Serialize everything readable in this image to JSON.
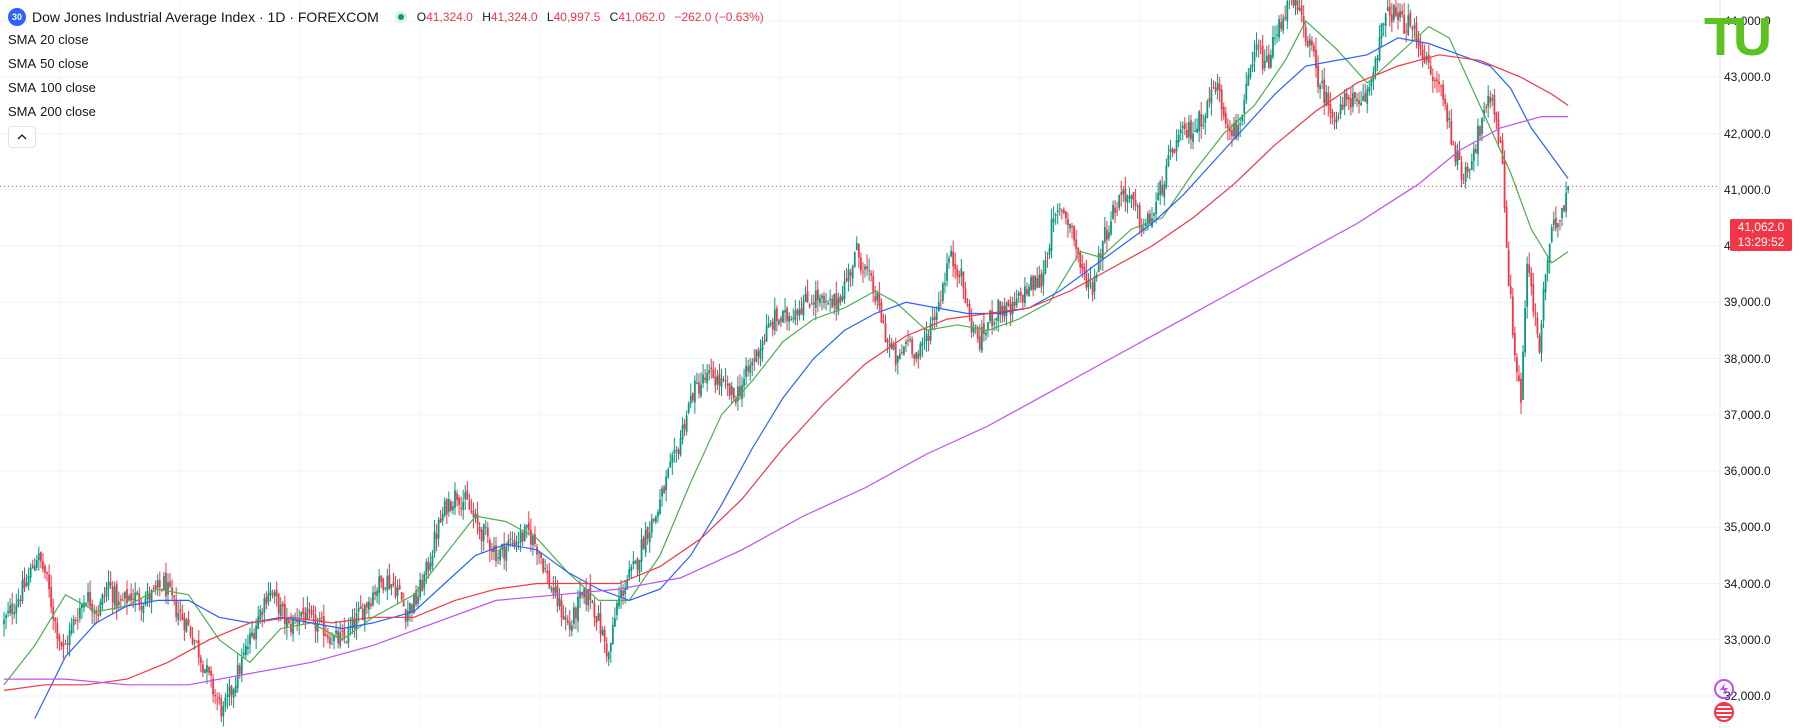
{
  "header": {
    "symbol_badge": "30",
    "title": "Dow Jones Industrial Average Index · 1D · FOREXCOM",
    "ohlc": [
      {
        "key": "O",
        "value": "41,324.0"
      },
      {
        "key": "H",
        "value": "41,324.0"
      },
      {
        "key": "L",
        "value": "40,997.5"
      },
      {
        "key": "C",
        "value": "41,062.0"
      },
      {
        "key": "",
        "value": "−262.0 (−0.63%)"
      }
    ]
  },
  "indicators": [
    {
      "title": "SMA",
      "args": "20 close",
      "color": "#4caf50"
    },
    {
      "title": "SMA",
      "args": "50 close",
      "color": "#2962ff"
    },
    {
      "title": "SMA",
      "args": "100 close",
      "color": "#f23645"
    },
    {
      "title": "SMA",
      "args": "200 close",
      "color": "#bf4ef5"
    }
  ],
  "price_axis": {
    "labels": [
      "44,000.0",
      "43,000.0",
      "42,000.0",
      "41,000.0",
      "40,000.0",
      "39,000.0",
      "38,000.0",
      "37,000.0",
      "36,000.0",
      "35,000.0",
      "34,000.0",
      "33,000.0",
      "32,000.0"
    ],
    "values": [
      44000,
      43000,
      42000,
      41000,
      40000,
      39000,
      38000,
      37000,
      36000,
      35000,
      34000,
      33000,
      32000
    ]
  },
  "last_price": {
    "label": "41,062.0",
    "countdown": "13:29:52",
    "value": 41062
  },
  "logo_text": "TU",
  "colors": {
    "up": "#089981",
    "down": "#f23645",
    "grid": "#f0f3fa",
    "accent": "#2962ff"
  },
  "chart_data": {
    "type": "candlestick",
    "instrument": "Dow Jones Industrial Average Index",
    "timeframe": "1D",
    "source": "FOREXCOM",
    "ylim": [
      31600,
      44900
    ],
    "close_path": [
      [
        0,
        33300
      ],
      [
        12,
        33700
      ],
      [
        22,
        34000
      ],
      [
        32,
        34500
      ],
      [
        40,
        34200
      ],
      [
        50,
        33300
      ],
      [
        58,
        32800
      ],
      [
        70,
        33400
      ],
      [
        80,
        33800
      ],
      [
        92,
        33500
      ],
      [
        102,
        34000
      ],
      [
        112,
        33600
      ],
      [
        124,
        33800
      ],
      [
        134,
        33700
      ],
      [
        146,
        33800
      ],
      [
        156,
        34000
      ],
      [
        166,
        33600
      ],
      [
        178,
        33300
      ],
      [
        186,
        33000
      ],
      [
        196,
        32500
      ],
      [
        206,
        32000
      ],
      [
        214,
        31700
      ],
      [
        224,
        32200
      ],
      [
        236,
        32800
      ],
      [
        248,
        33400
      ],
      [
        258,
        33900
      ],
      [
        268,
        33600
      ],
      [
        278,
        33200
      ],
      [
        290,
        33500
      ],
      [
        300,
        33300
      ],
      [
        312,
        33200
      ],
      [
        322,
        33000
      ],
      [
        332,
        33000
      ],
      [
        342,
        33300
      ],
      [
        352,
        33600
      ],
      [
        362,
        33900
      ],
      [
        372,
        34100
      ],
      [
        384,
        33900
      ],
      [
        392,
        33500
      ],
      [
        402,
        33700
      ],
      [
        412,
        34200
      ],
      [
        422,
        34900
      ],
      [
        432,
        35400
      ],
      [
        442,
        35600
      ],
      [
        452,
        35400
      ],
      [
        462,
        35000
      ],
      [
        472,
        34800
      ],
      [
        482,
        34500
      ],
      [
        492,
        34700
      ],
      [
        502,
        34800
      ],
      [
        512,
        34900
      ],
      [
        522,
        34600
      ],
      [
        532,
        34000
      ],
      [
        542,
        33600
      ],
      [
        552,
        33200
      ],
      [
        562,
        33700
      ],
      [
        572,
        33800
      ],
      [
        582,
        33200
      ],
      [
        590,
        32700
      ],
      [
        598,
        33600
      ],
      [
        606,
        34000
      ],
      [
        616,
        34300
      ],
      [
        626,
        34900
      ],
      [
        636,
        35200
      ],
      [
        646,
        35800
      ],
      [
        656,
        36300
      ],
      [
        664,
        36900
      ],
      [
        672,
        37400
      ],
      [
        682,
        37600
      ],
      [
        692,
        37700
      ],
      [
        702,
        37500
      ],
      [
        712,
        37300
      ],
      [
        722,
        37600
      ],
      [
        732,
        38000
      ],
      [
        742,
        38400
      ],
      [
        752,
        38700
      ],
      [
        762,
        38700
      ],
      [
        772,
        38900
      ],
      [
        782,
        39000
      ],
      [
        792,
        39100
      ],
      [
        802,
        38900
      ],
      [
        812,
        39000
      ],
      [
        822,
        39400
      ],
      [
        832,
        39900
      ],
      [
        842,
        39500
      ],
      [
        852,
        39000
      ],
      [
        862,
        38300
      ],
      [
        872,
        37900
      ],
      [
        882,
        38400
      ],
      [
        892,
        38000
      ],
      [
        902,
        38500
      ],
      [
        912,
        39000
      ],
      [
        922,
        39800
      ],
      [
        932,
        39600
      ],
      [
        942,
        38700
      ],
      [
        952,
        38300
      ],
      [
        962,
        38700
      ],
      [
        972,
        38900
      ],
      [
        982,
        38800
      ],
      [
        992,
        39100
      ],
      [
        1002,
        39300
      ],
      [
        1012,
        39400
      ],
      [
        1022,
        40300
      ],
      [
        1032,
        40700
      ],
      [
        1042,
        40300
      ],
      [
        1052,
        39500
      ],
      [
        1062,
        39300
      ],
      [
        1072,
        40100
      ],
      [
        1082,
        40600
      ],
      [
        1092,
        41000
      ],
      [
        1102,
        40700
      ],
      [
        1112,
        40300
      ],
      [
        1122,
        40600
      ],
      [
        1132,
        41200
      ],
      [
        1142,
        41800
      ],
      [
        1152,
        42000
      ],
      [
        1162,
        42100
      ],
      [
        1172,
        42400
      ],
      [
        1182,
        42900
      ],
      [
        1192,
        42300
      ],
      [
        1202,
        42000
      ],
      [
        1212,
        42700
      ],
      [
        1222,
        43500
      ],
      [
        1232,
        43200
      ],
      [
        1242,
        43800
      ],
      [
        1252,
        44300
      ],
      [
        1262,
        44200
      ],
      [
        1272,
        43700
      ],
      [
        1282,
        43000
      ],
      [
        1292,
        42500
      ],
      [
        1302,
        42300
      ],
      [
        1312,
        42700
      ],
      [
        1322,
        42400
      ],
      [
        1332,
        42800
      ],
      [
        1342,
        43700
      ],
      [
        1352,
        44200
      ],
      [
        1362,
        44000
      ],
      [
        1372,
        43900
      ],
      [
        1382,
        43600
      ],
      [
        1392,
        43000
      ],
      [
        1402,
        42800
      ],
      [
        1412,
        42000
      ],
      [
        1422,
        41200
      ],
      [
        1432,
        41600
      ],
      [
        1442,
        42200
      ],
      [
        1452,
        42700
      ],
      [
        1462,
        41500
      ],
      [
        1468,
        39400
      ],
      [
        1474,
        38100
      ],
      [
        1480,
        37300
      ],
      [
        1486,
        39700
      ],
      [
        1492,
        38900
      ],
      [
        1498,
        38200
      ],
      [
        1504,
        39500
      ],
      [
        1510,
        40200
      ],
      [
        1516,
        40500
      ],
      [
        1522,
        40800
      ],
      [
        1526,
        41062
      ]
    ],
    "sma_series": [
      {
        "name": "SMA 20",
        "color": "#4caf50",
        "points": [
          [
            0,
            32200
          ],
          [
            30,
            32900
          ],
          [
            60,
            33800
          ],
          [
            90,
            33500
          ],
          [
            120,
            33600
          ],
          [
            150,
            33900
          ],
          [
            180,
            33800
          ],
          [
            210,
            33000
          ],
          [
            240,
            32600
          ],
          [
            270,
            33200
          ],
          [
            300,
            33300
          ],
          [
            330,
            33000
          ],
          [
            360,
            33400
          ],
          [
            400,
            33800
          ],
          [
            430,
            34500
          ],
          [
            460,
            35200
          ],
          [
            490,
            35100
          ],
          [
            520,
            34800
          ],
          [
            550,
            34200
          ],
          [
            580,
            33700
          ],
          [
            610,
            33700
          ],
          [
            640,
            34500
          ],
          [
            670,
            35800
          ],
          [
            700,
            37000
          ],
          [
            730,
            37600
          ],
          [
            760,
            38300
          ],
          [
            790,
            38700
          ],
          [
            820,
            38900
          ],
          [
            850,
            39200
          ],
          [
            870,
            39000
          ],
          [
            900,
            38500
          ],
          [
            930,
            38600
          ],
          [
            960,
            38500
          ],
          [
            990,
            38700
          ],
          [
            1020,
            39000
          ],
          [
            1050,
            39900
          ],
          [
            1070,
            39800
          ],
          [
            1100,
            40300
          ],
          [
            1130,
            40500
          ],
          [
            1160,
            41300
          ],
          [
            1190,
            42000
          ],
          [
            1220,
            42500
          ],
          [
            1250,
            43300
          ],
          [
            1270,
            44000
          ],
          [
            1300,
            43500
          ],
          [
            1330,
            42900
          ],
          [
            1360,
            43400
          ],
          [
            1390,
            43900
          ],
          [
            1410,
            43700
          ],
          [
            1430,
            42900
          ],
          [
            1450,
            42100
          ],
          [
            1470,
            41300
          ],
          [
            1490,
            40300
          ],
          [
            1510,
            39700
          ],
          [
            1526,
            39900
          ]
        ]
      },
      {
        "name": "SMA 50",
        "color": "#2962ff",
        "points": [
          [
            30,
            31600
          ],
          [
            60,
            32700
          ],
          [
            90,
            33300
          ],
          [
            120,
            33600
          ],
          [
            150,
            33700
          ],
          [
            180,
            33700
          ],
          [
            210,
            33400
          ],
          [
            240,
            33300
          ],
          [
            270,
            33400
          ],
          [
            300,
            33300
          ],
          [
            330,
            33200
          ],
          [
            360,
            33300
          ],
          [
            400,
            33500
          ],
          [
            430,
            34000
          ],
          [
            460,
            34500
          ],
          [
            490,
            34700
          ],
          [
            520,
            34600
          ],
          [
            550,
            34200
          ],
          [
            580,
            33900
          ],
          [
            610,
            33700
          ],
          [
            640,
            33900
          ],
          [
            670,
            34500
          ],
          [
            700,
            35400
          ],
          [
            730,
            36400
          ],
          [
            760,
            37300
          ],
          [
            790,
            38000
          ],
          [
            820,
            38500
          ],
          [
            850,
            38800
          ],
          [
            880,
            39000
          ],
          [
            910,
            38900
          ],
          [
            940,
            38800
          ],
          [
            970,
            38800
          ],
          [
            1000,
            38900
          ],
          [
            1030,
            39200
          ],
          [
            1060,
            39600
          ],
          [
            1090,
            40000
          ],
          [
            1120,
            40400
          ],
          [
            1150,
            40900
          ],
          [
            1180,
            41500
          ],
          [
            1210,
            42100
          ],
          [
            1240,
            42700
          ],
          [
            1270,
            43200
          ],
          [
            1300,
            43300
          ],
          [
            1330,
            43400
          ],
          [
            1360,
            43700
          ],
          [
            1390,
            43600
          ],
          [
            1420,
            43400
          ],
          [
            1450,
            43200
          ],
          [
            1470,
            42800
          ],
          [
            1490,
            42100
          ],
          [
            1510,
            41600
          ],
          [
            1526,
            41200
          ]
        ]
      },
      {
        "name": "SMA 100",
        "color": "#f23645",
        "points": [
          [
            0,
            32100
          ],
          [
            40,
            32200
          ],
          [
            80,
            32200
          ],
          [
            120,
            32300
          ],
          [
            160,
            32600
          ],
          [
            200,
            33000
          ],
          [
            240,
            33300
          ],
          [
            280,
            33400
          ],
          [
            320,
            33300
          ],
          [
            360,
            33400
          ],
          [
            400,
            33400
          ],
          [
            440,
            33700
          ],
          [
            480,
            33900
          ],
          [
            520,
            34000
          ],
          [
            560,
            34000
          ],
          [
            600,
            34000
          ],
          [
            640,
            34300
          ],
          [
            680,
            34800
          ],
          [
            720,
            35500
          ],
          [
            760,
            36400
          ],
          [
            800,
            37200
          ],
          [
            840,
            37900
          ],
          [
            880,
            38400
          ],
          [
            920,
            38700
          ],
          [
            960,
            38800
          ],
          [
            1000,
            38900
          ],
          [
            1040,
            39200
          ],
          [
            1080,
            39600
          ],
          [
            1120,
            40000
          ],
          [
            1160,
            40500
          ],
          [
            1200,
            41100
          ],
          [
            1240,
            41800
          ],
          [
            1280,
            42400
          ],
          [
            1320,
            42900
          ],
          [
            1360,
            43200
          ],
          [
            1400,
            43400
          ],
          [
            1440,
            43300
          ],
          [
            1480,
            43000
          ],
          [
            1510,
            42700
          ],
          [
            1526,
            42500
          ]
        ]
      },
      {
        "name": "SMA 200",
        "color": "#bf4ef5",
        "points": [
          [
            0,
            32300
          ],
          [
            60,
            32300
          ],
          [
            120,
            32200
          ],
          [
            180,
            32200
          ],
          [
            240,
            32400
          ],
          [
            300,
            32600
          ],
          [
            360,
            32900
          ],
          [
            420,
            33300
          ],
          [
            480,
            33700
          ],
          [
            540,
            33800
          ],
          [
            600,
            33900
          ],
          [
            660,
            34100
          ],
          [
            720,
            34600
          ],
          [
            780,
            35200
          ],
          [
            840,
            35700
          ],
          [
            900,
            36300
          ],
          [
            960,
            36800
          ],
          [
            1020,
            37400
          ],
          [
            1080,
            38000
          ],
          [
            1140,
            38600
          ],
          [
            1200,
            39200
          ],
          [
            1260,
            39800
          ],
          [
            1320,
            40400
          ],
          [
            1380,
            41100
          ],
          [
            1420,
            41700
          ],
          [
            1460,
            42100
          ],
          [
            1500,
            42300
          ],
          [
            1526,
            42300
          ]
        ]
      }
    ]
  }
}
